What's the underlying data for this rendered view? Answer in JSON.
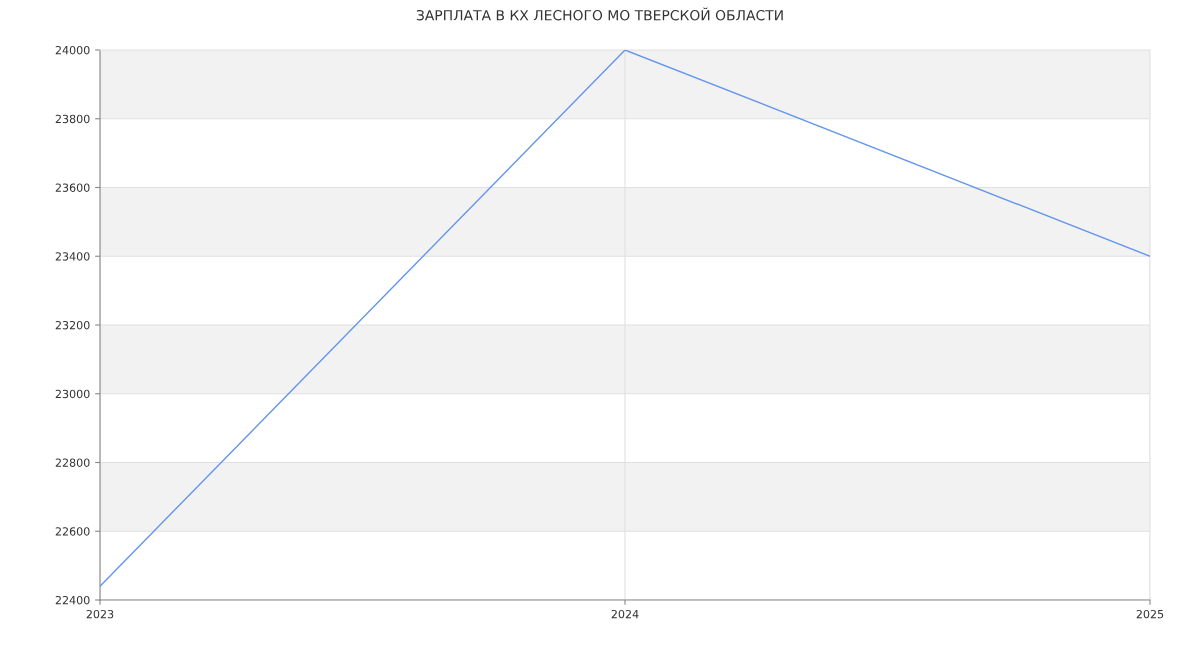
{
  "chart_data": {
    "type": "line",
    "title": "ЗАРПЛАТА В КХ ЛЕСНОГО МО ТВЕРСКОЙ ОБЛАСТИ",
    "x": [
      2023,
      2024,
      2025
    ],
    "series": [
      {
        "color": "#6495ed",
        "values": [
          22440,
          24000,
          23400
        ]
      }
    ],
    "xlim": [
      2023,
      2025
    ],
    "xticks": [
      2023,
      2024,
      2025
    ],
    "ylim": [
      22400,
      24000
    ],
    "yticks": [
      22400,
      22600,
      22800,
      23000,
      23200,
      23400,
      23600,
      23800,
      24000
    ],
    "grid": true,
    "marker": "none",
    "line_style": "solid"
  }
}
